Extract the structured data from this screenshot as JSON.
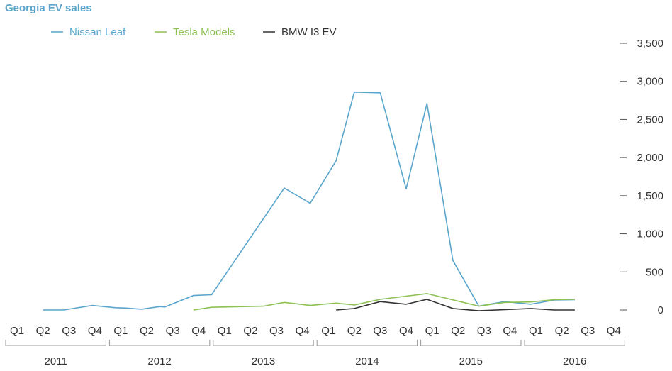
{
  "chart_data": {
    "type": "line",
    "title": "Georgia EV sales",
    "xlabel": "",
    "ylabel": "",
    "ylim": [
      0,
      3500
    ],
    "y_ticks": [
      0,
      500,
      1000,
      1500,
      2000,
      2500,
      3000,
      3500
    ],
    "y_tick_labels": [
      "0",
      "500",
      "1,000",
      "1,500",
      "2,000",
      "2,500",
      "3,000",
      "3,500"
    ],
    "y_axis_position": "right",
    "grid": false,
    "legend_position": "top-left",
    "years": [
      "2011",
      "2012",
      "2013",
      "2014",
      "2015",
      "2016"
    ],
    "quarters": [
      "Q1",
      "Q2",
      "Q3",
      "Q4"
    ],
    "series": [
      {
        "name": "Nissan Leaf",
        "color": "#5aa5cc",
        "points": [
          [
            1.0,
            0
          ],
          [
            1.8,
            0
          ],
          [
            2.9,
            60
          ],
          [
            3.8,
            30
          ],
          [
            4.2,
            25
          ],
          [
            4.8,
            10
          ],
          [
            5.5,
            45
          ],
          [
            5.7,
            40
          ],
          [
            6.8,
            190
          ],
          [
            7.5,
            200
          ],
          [
            9.2,
            1050
          ],
          [
            10.3,
            1600
          ],
          [
            11.3,
            1400
          ],
          [
            12.3,
            1960
          ],
          [
            13.0,
            2860
          ],
          [
            14.0,
            2850
          ],
          [
            15.0,
            1590
          ],
          [
            15.8,
            2710
          ],
          [
            16.8,
            650
          ],
          [
            17.8,
            50
          ],
          [
            18.8,
            110
          ],
          [
            19.8,
            75
          ],
          [
            20.7,
            130
          ],
          [
            21.5,
            135
          ]
        ]
      },
      {
        "name": "Tesla Models",
        "color": "#8dc153",
        "points": [
          [
            6.8,
            0
          ],
          [
            7.5,
            35
          ],
          [
            9.5,
            50
          ],
          [
            10.3,
            100
          ],
          [
            11.3,
            60
          ],
          [
            12.3,
            90
          ],
          [
            13.0,
            65
          ],
          [
            14.0,
            140
          ],
          [
            15.8,
            215
          ],
          [
            17.8,
            50
          ],
          [
            18.8,
            100
          ],
          [
            19.8,
            105
          ],
          [
            20.7,
            135
          ],
          [
            21.5,
            140
          ]
        ]
      },
      {
        "name": "BMW I3 EV",
        "color": "#333333",
        "points": [
          [
            12.3,
            0
          ],
          [
            13.0,
            20
          ],
          [
            14.0,
            110
          ],
          [
            15.0,
            75
          ],
          [
            15.8,
            140
          ],
          [
            16.8,
            20
          ],
          [
            17.8,
            -10
          ],
          [
            18.8,
            5
          ],
          [
            19.8,
            20
          ],
          [
            20.7,
            0
          ],
          [
            21.5,
            0
          ]
        ]
      }
    ]
  }
}
